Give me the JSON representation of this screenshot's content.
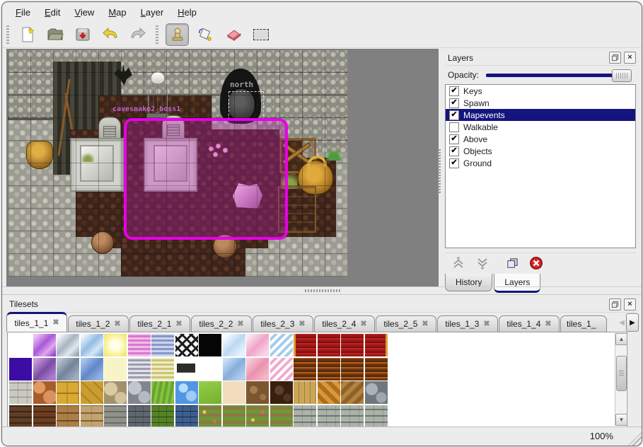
{
  "menu": {
    "items": [
      "File",
      "Edit",
      "View",
      "Map",
      "Layer",
      "Help"
    ]
  },
  "toolbar": {
    "tools": [
      "new",
      "open",
      "save",
      "undo",
      "redo",
      "stamp",
      "fill",
      "eraser",
      "select"
    ],
    "active_tool": "stamp"
  },
  "map": {
    "north_label": "north",
    "gate_label": "cavesnake2_boss1"
  },
  "icons": {
    "check": "✔",
    "tab_close": "✖",
    "close": "×",
    "arrow_up": "▲",
    "arrow_down": "▼",
    "arrow_left": "◀",
    "arrow_right": "▶"
  },
  "colors": {
    "accent_navy": "#14147e",
    "selection_magenta": "#e800e8",
    "selection_fill": "rgba(190,30,180,0.32)",
    "gate_label_color": "#c060d0",
    "north_label_color": "#9c9c9c"
  },
  "layers_panel": {
    "title": "Layers",
    "opacity_label": "Opacity:",
    "layers": [
      {
        "label": "Keys",
        "checked": true,
        "selected": false
      },
      {
        "label": "Spawn",
        "checked": true,
        "selected": false
      },
      {
        "label": "Mapevents",
        "checked": true,
        "selected": true
      },
      {
        "label": "Walkable",
        "checked": false,
        "selected": false
      },
      {
        "label": "Above",
        "checked": true,
        "selected": false
      },
      {
        "label": "Objects",
        "checked": true,
        "selected": false
      },
      {
        "label": "Ground",
        "checked": true,
        "selected": false
      }
    ],
    "tabs": [
      {
        "label": "History",
        "active": false
      },
      {
        "label": "Layers",
        "active": true
      }
    ]
  },
  "tilesets_panel": {
    "title": "Tilesets",
    "tabs": [
      {
        "label": "tiles_1_1",
        "active": true
      },
      {
        "label": "tiles_1_2",
        "active": false
      },
      {
        "label": "tiles_2_1",
        "active": false
      },
      {
        "label": "tiles_2_2",
        "active": false
      },
      {
        "label": "tiles_2_3",
        "active": false
      },
      {
        "label": "tiles_2_4",
        "active": false
      },
      {
        "label": "tiles_2_5",
        "active": false
      },
      {
        "label": "tiles_1_3",
        "active": false
      },
      {
        "label": "tiles_1_4",
        "active": false
      },
      {
        "label": "tiles_1_",
        "active": false
      }
    ],
    "palette_rows": [
      [
        "#ffffff",
        "linear-gradient(135deg,#ecc0f8 10%,#a858d8 45%,#e0a8f0 70%,#9040c8 95%)",
        "linear-gradient(135deg,#f4f8fc 10%,#a8b4c0 45%,#e0e8f0 70%,#94a0ac 95%)",
        "linear-gradient(135deg,#ecf4fc 10%,#94bce4 45%,#d4e6f8 70%,#84acd8 95%)",
        "radial-gradient(circle,#ffffe8 25%,#f8ee8c 70%,#f0e068 100%)",
        "repeating-linear-gradient(0deg,#f2bcea 0 3px,#d878cc 3px 6px)",
        "repeating-linear-gradient(0deg,#ccd4ee 0 3px,#8896c6 3px 6px)",
        "repeating-linear-gradient(45deg,#1a1a1c 0 3px,transparent 3px 9px),repeating-linear-gradient(-45deg,#1a1a1c 0 3px,#f4f4f4 3px 9px)",
        "#050505",
        "linear-gradient(135deg,#f8fcff 10%,#bcd8f4 50%,#e8f2fc 85%)",
        "linear-gradient(135deg,#fce8f2 10%,#f0a4c8 50%,#f8d4e6 85%)",
        "repeating-linear-gradient(135deg,#ffffff 0 4px,#a4ccec 4px 8px)",
        "linear-gradient(90deg,#d8a030 0 3px,transparent 3px),repeating-linear-gradient(0deg,#9e1818 0 3px,#c02424 3px 5px,#7c1010 5px 7px)",
        "repeating-linear-gradient(0deg,#9e1818 0 3px,#c02424 3px 5px,#7c1010 5px 7px)",
        "repeating-linear-gradient(0deg,#9e1818 0 3px,#c02424 3px 5px,#7c1010 5px 7px)",
        "linear-gradient(270deg,#d8a030 0 3px,transparent 3px),repeating-linear-gradient(0deg,#9e1818 0 3px,#c02424 3px 5px,#7c1010 5px 7px)"
      ],
      [
        "#3c0ca4",
        "linear-gradient(135deg,#c89ce0 10%,#7c4ca4 50%,#aa7cce 85%)",
        "linear-gradient(135deg,#b8c4d0 10%,#73839b 50%,#9fafbf 85%)",
        "linear-gradient(135deg,#a9c5ed 10%,#6287c7 50%,#92b2e2 85%)",
        "#f8f4c8",
        "repeating-linear-gradient(0deg,#e2e2ea 0 3px,#9c9cae 3px 6px)",
        "repeating-linear-gradient(0deg,#f0ecc2 0 3px,#ccc476 3px 6px)",
        "linear-gradient(#2e2c28,#2e2c28) 50% 45%/82% 40% no-repeat,linear-gradient(#ffffff,#ffffff)",
        "#ffffff",
        "linear-gradient(135deg,#cadef6 10%,#86aeda 50%,#b2ceee 85%)",
        "linear-gradient(135deg,#facada 10%,#ea92ae 50%,#f6b6ca 85%)",
        "repeating-linear-gradient(135deg,#ffffff 0 4px,#f2aace 4px 8px)",
        "repeating-linear-gradient(0deg,#6c3610 0 3px,#b65e1e 3px 5px,#542808 5px 7px)",
        "repeating-linear-gradient(0deg,#6c3610 0 3px,#b65e1e 3px 5px,#542808 5px 7px)",
        "repeating-linear-gradient(0deg,#6c3610 0 3px,#b65e1e 3px 5px,#542808 5px 7px)",
        "repeating-linear-gradient(0deg,#6c3610 0 3px,#b65e1e 3px 5px,#542808 5px 7px)"
      ],
      [
        "repeating-linear-gradient(0deg,transparent 0 9px,#84847c 9px 10px),repeating-linear-gradient(90deg,#c9c9c1 0 12px,#a3a39b 12px 13px)",
        "radial-gradient(circle at 27% 28%,#e09c60 8px,transparent 9px),radial-gradient(circle at 74% 70%,#d8925e 9px,transparent 10px),linear-gradient(#a85c2c,#a85c2c)",
        "repeating-linear-gradient(0deg,transparent 0 14px,#a07818 14px 16px),repeating-linear-gradient(90deg,#d9a935 0 14px,#c19129 14px 16px)",
        "repeating-linear-gradient(45deg,#c99d31 0 10px,#a98119 10px 12px)",
        "radial-gradient(circle at 30% 34%,#dbcba3 9px,transparent 10px),radial-gradient(circle at 74% 74%,#d3c39b 8px,transparent 9px),linear-gradient(#a1916f,#a1916f)",
        "radial-gradient(circle at 30% 30%,#c2c6ce 9px,transparent 10px),radial-gradient(circle at 72% 70%,#b6bac2 8px,transparent 9px),linear-gradient(#82868c,#82868c)",
        "repeating-linear-gradient(100deg,#86c242 0 4px,#68a42c 4px 8px)",
        "radial-gradient(circle at 35% 30%,#b8dcfc 6px,transparent 7px),radial-gradient(circle at 70% 65%,#a0ccf4 7px,transparent 8px),linear-gradient(#5096e4,#5096e4)",
        "linear-gradient(160deg,#97cf47,#73af2f)",
        "#f1ddbd",
        "radial-gradient(circle at 33% 38%,#a87c4c 5px,transparent 6px),radial-gradient(circle at 74% 70%,#9c7448 4px,transparent 5px),linear-gradient(#7c5630,#7c5630)",
        "radial-gradient(circle at 40% 40%,#5e3e2a 6px,transparent 7px),radial-gradient(circle at 75% 72%,#523422 5px,transparent 6px),linear-gradient(#38200f,#38200f)",
        "repeating-linear-gradient(90deg,#caa656 0 7px,#9e7e36 7px 8px)",
        "repeating-linear-gradient(45deg,#db9636 0 6px,#aa6e1e 6px 12px)",
        "repeating-linear-gradient(-45deg,#b28240 0 6px,#8e6226 6px 12px)",
        "radial-gradient(circle at 30% 35%,#aab2ba 8px,transparent 9px),radial-gradient(circle at 72% 72%,#9ea6ae 7px,transparent 8px),linear-gradient(#6e767e,#6e767e)"
      ],
      [
        "repeating-linear-gradient(0deg,#5e3e26 0 6px,#3c2410 6px 8px)",
        "repeating-linear-gradient(0deg,#6a3e22 0 6px,#46260e 6px 8px)",
        "repeating-linear-gradient(0deg,transparent 0 9px,#6c4c24 9px 11px),repeating-linear-gradient(90deg,#aa7e46 0 15px,#966c38 15px 16px)",
        "repeating-linear-gradient(0deg,transparent 0 9px,#7a6238 9px 11px),repeating-linear-gradient(90deg,#c2a26e 0 15px,#aa8a52 15px 16px)",
        "repeating-linear-gradient(0deg,#8e928a 0 6px,#6a6e66 6px 8px)",
        "repeating-linear-gradient(0deg,transparent 0 7px,#32363e 7px 8px),repeating-linear-gradient(90deg,#5e666e 0 10px,#4a525a 10px 11px)",
        "repeating-linear-gradient(0deg,transparent 0 7px,#2c4614 7px 8px),repeating-linear-gradient(90deg,#568226 0 10px,#3e661a 10px 11px)",
        "repeating-linear-gradient(0deg,transparent 0 7px,#1c2c46 7px 8px),repeating-linear-gradient(90deg,#3e5e8e 0 10px,#2e466a 10px 11px)",
        "radial-gradient(circle at 25% 30%,#e8d048 2px,transparent 3px),radial-gradient(circle at 70% 70%,#e06868 2px,transparent 3px),repeating-linear-gradient(0deg,#6e9636 0 6px,#8e7646 6px 10px)",
        "repeating-linear-gradient(0deg,#6e9636 0 6px,#8e7646 6px 10px)",
        "radial-gradient(circle at 30% 65%,#e8d048 2px,transparent 3px),radial-gradient(circle at 72% 30%,#e06868 2px,transparent 3px),repeating-linear-gradient(0deg,#6e9636 0 6px,#8e7646 6px 10px)",
        "repeating-linear-gradient(0deg,#6e9636 0 6px,#8e7646 6px 10px)",
        "repeating-linear-gradient(0deg,transparent 0 7px,#6e766e 7px 9px),repeating-linear-gradient(90deg,#aab2aa 0 12px,#8e968e 12px 13px)",
        "repeating-linear-gradient(0deg,transparent 0 7px,#6e766e 7px 9px),repeating-linear-gradient(90deg,#aab2aa 0 12px,#8e968e 12px 13px)",
        "repeating-linear-gradient(0deg,transparent 0 7px,#6e766e 7px 9px),repeating-linear-gradient(90deg,#aab2aa 0 12px,#8e968e 12px 13px)",
        "repeating-linear-gradient(0deg,transparent 0 7px,#6e766e 7px 9px),repeating-linear-gradient(90deg,#aab2aa 0 12px,#8e968e 12px 13px)"
      ]
    ]
  },
  "status": {
    "zoom_level": "100%"
  }
}
